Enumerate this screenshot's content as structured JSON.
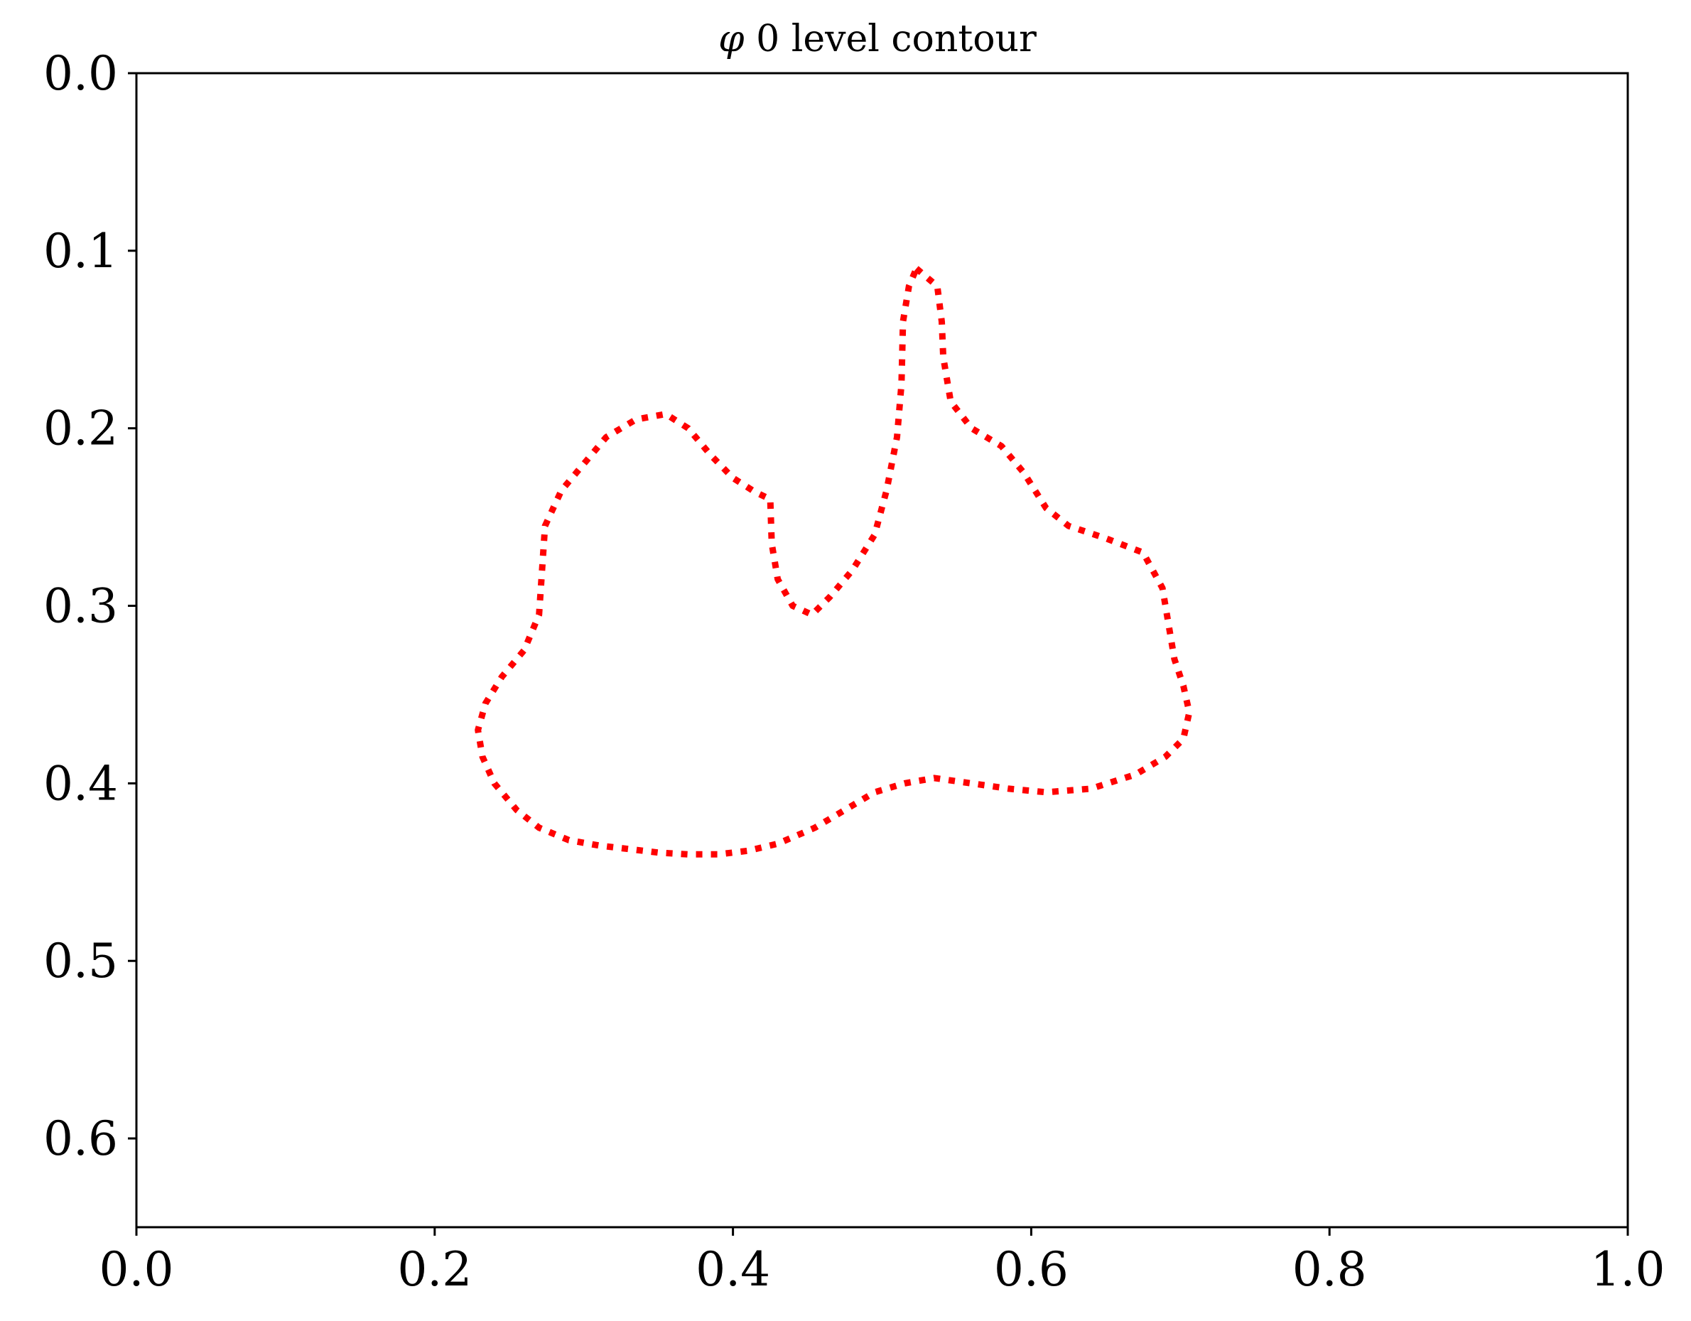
{
  "chart_data": {
    "type": "line",
    "title_symbol": "φ",
    "title_rest": " 0 level contour",
    "xlabel": "",
    "ylabel": "",
    "xlim": [
      0.0,
      1.0
    ],
    "ylim": [
      0.65,
      0.0
    ],
    "y_inverted": true,
    "x_ticks": [
      "0.0",
      "0.2",
      "0.4",
      "0.6",
      "0.8",
      "1.0"
    ],
    "y_ticks": [
      "0.0",
      "0.1",
      "0.2",
      "0.3",
      "0.4",
      "0.5",
      "0.6"
    ],
    "grid": false,
    "legend": "none",
    "series": [
      {
        "line_style": "dotted",
        "color": "#ff0000",
        "x": [
          0.523,
          0.537,
          0.54,
          0.541,
          0.546,
          0.56,
          0.58,
          0.595,
          0.61,
          0.625,
          0.65,
          0.675,
          0.688,
          0.693,
          0.696,
          0.702,
          0.706,
          0.702,
          0.69,
          0.67,
          0.64,
          0.61,
          0.585,
          0.56,
          0.535,
          0.515,
          0.495,
          0.475,
          0.455,
          0.43,
          0.41,
          0.39,
          0.37,
          0.35,
          0.33,
          0.31,
          0.29,
          0.27,
          0.255,
          0.24,
          0.232,
          0.229,
          0.234,
          0.245,
          0.26,
          0.27,
          0.272,
          0.274,
          0.285,
          0.3,
          0.315,
          0.335,
          0.355,
          0.37,
          0.385,
          0.4,
          0.415,
          0.425,
          0.426,
          0.43,
          0.44,
          0.453,
          0.465,
          0.48,
          0.495,
          0.503,
          0.51,
          0.513,
          0.514,
          0.518,
          0.523
        ],
        "y": [
          0.11,
          0.12,
          0.14,
          0.16,
          0.185,
          0.2,
          0.21,
          0.225,
          0.245,
          0.255,
          0.262,
          0.27,
          0.29,
          0.315,
          0.33,
          0.345,
          0.36,
          0.375,
          0.385,
          0.395,
          0.403,
          0.405,
          0.403,
          0.4,
          0.397,
          0.4,
          0.405,
          0.415,
          0.425,
          0.434,
          0.438,
          0.44,
          0.44,
          0.439,
          0.437,
          0.435,
          0.432,
          0.425,
          0.415,
          0.4,
          0.385,
          0.37,
          0.355,
          0.34,
          0.325,
          0.305,
          0.28,
          0.255,
          0.235,
          0.22,
          0.205,
          0.195,
          0.192,
          0.2,
          0.215,
          0.228,
          0.236,
          0.24,
          0.265,
          0.285,
          0.3,
          0.305,
          0.295,
          0.28,
          0.26,
          0.235,
          0.205,
          0.175,
          0.14,
          0.12,
          0.11
        ]
      }
    ]
  }
}
